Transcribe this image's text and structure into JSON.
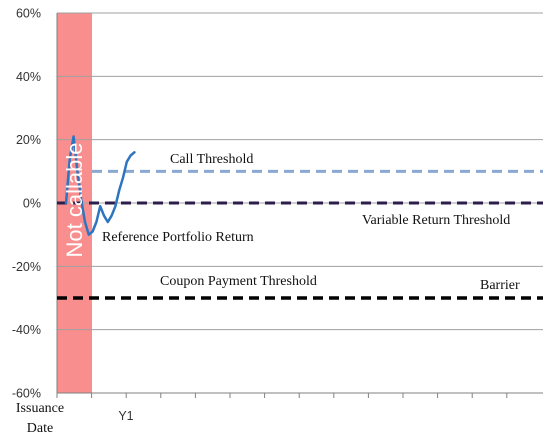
{
  "chart_data": {
    "type": "line",
    "y_ticks": [
      "60%",
      "40%",
      "20%",
      "0%",
      "-20%",
      "-40%",
      "-60%"
    ],
    "ylim": [
      -60,
      60
    ],
    "x_tick_labels": {
      "start": "Issuance Date",
      "y1": "Y1"
    },
    "x_tick_count": 11,
    "grid": "horizontal",
    "shaded_region": {
      "label": "Not callable",
      "color": "#f98e8e"
    },
    "thresholds": [
      {
        "name": "Call Threshold",
        "y": 10,
        "color": "#8aa9d1",
        "style": "dashed"
      },
      {
        "name": "Variable Return Threshold",
        "y": 0,
        "color": "#2b1e4a",
        "style": "dashed"
      },
      {
        "name": "Coupon Payment  Threshold",
        "y": -30,
        "color": "#000000",
        "style": "dashed"
      },
      {
        "name": "Barrier",
        "y": -30,
        "color": "#000000",
        "style": "dashed"
      }
    ],
    "series": [
      {
        "name": "Reference  Portfolio Return",
        "color": "#2e74c0",
        "x": [
          0,
          0.1,
          0.2,
          0.3,
          0.4,
          0.5,
          0.6,
          0.7,
          0.8,
          0.9,
          1.0,
          1.1,
          1.2,
          1.3,
          1.4,
          1.5,
          1.6,
          1.7,
          1.8
        ],
        "y": [
          0,
          14,
          21,
          10,
          1,
          -6,
          -10,
          -9,
          -6,
          -1,
          -4,
          -6,
          -4,
          -1,
          4,
          8,
          13,
          15,
          16
        ]
      }
    ]
  }
}
